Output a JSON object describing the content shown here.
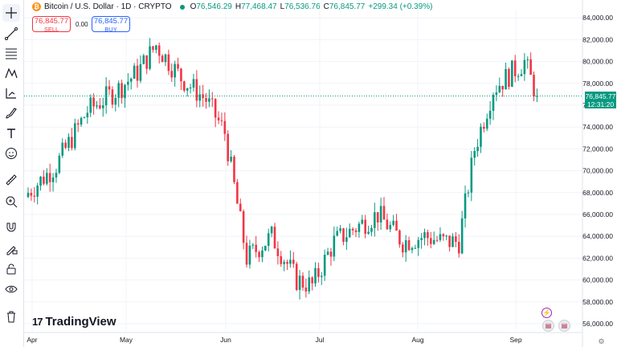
{
  "legend": {
    "symbol_badge": "₿",
    "title": "Bitcoin / U.S. Dollar · 1D · CRYPTO",
    "ohlc": [
      {
        "key": "O",
        "value": "76,546.29"
      },
      {
        "key": "H",
        "value": "77,468.47"
      },
      {
        "key": "L",
        "value": "76,536.76"
      },
      {
        "key": "C",
        "value": "76,845.77"
      }
    ],
    "change": "+299.34 (+0.39%)",
    "up_color": "#089981",
    "down_color": "#f23645"
  },
  "trade": {
    "sell_price": "76,845.77",
    "sell_label": "SELL",
    "spread": "0.00",
    "buy_price": "76,845.77",
    "buy_label": "BUY"
  },
  "price_scale": {
    "current_price": "76,845.77",
    "countdown": "12:31:20"
  },
  "toolbar_icons": [
    "crosshair-icon",
    "trend-line-icon",
    "fib-retracement-icon",
    "pattern-icon",
    "projection-icon",
    "brush-icon",
    "text-icon",
    "emoji-icon",
    "ruler-icon",
    "zoom-in-icon",
    "magnet-icon",
    "lock-drawing-icon",
    "lock-icon",
    "eye-icon",
    "trash-icon"
  ],
  "branding": {
    "mark": "17",
    "name": "TradingView"
  },
  "chart_data": {
    "type": "candlestick",
    "x_tick_labels": [
      "Apr",
      "May",
      "Jun",
      "Jul",
      "Aug",
      "Sep"
    ],
    "y_tick_labels": [
      "84,000.00",
      "82,000.00",
      "80,000.00",
      "78,000.00",
      "76,000.00",
      "74,000.00",
      "72,000.00",
      "70,000.00",
      "68,000.00",
      "66,000.00",
      "64,000.00",
      "62,000.00",
      "60,000.00",
      "58,000.00",
      "56,000.00"
    ],
    "ylim": [
      55000,
      85000
    ],
    "grid": true,
    "last_price_line": 76845.77,
    "approx_close_path": [
      {
        "date": "Apr 1",
        "close": 68000
      },
      {
        "date": "Apr 10",
        "close": 70500
      },
      {
        "date": "Apr 20",
        "close": 75500
      },
      {
        "date": "Apr 30",
        "close": 77500
      },
      {
        "date": "May 6",
        "close": 79000
      },
      {
        "date": "May 12",
        "close": 81500
      },
      {
        "date": "May 20",
        "close": 78500
      },
      {
        "date": "May 28",
        "close": 76500
      },
      {
        "date": "Jun 3",
        "close": 73500
      },
      {
        "date": "Jun 10",
        "close": 62000
      },
      {
        "date": "Jun 18",
        "close": 64000
      },
      {
        "date": "Jun 26",
        "close": 60000
      },
      {
        "date": "Jul 1",
        "close": 59500
      },
      {
        "date": "Jul 8",
        "close": 63500
      },
      {
        "date": "Jul 16",
        "close": 65000
      },
      {
        "date": "Jul 22",
        "close": 66000
      },
      {
        "date": "Jul 30",
        "close": 63500
      },
      {
        "date": "Aug 6",
        "close": 64000
      },
      {
        "date": "Aug 12",
        "close": 63500
      },
      {
        "date": "Aug 17",
        "close": 63500
      },
      {
        "date": "Aug 22",
        "close": 72000
      },
      {
        "date": "Aug 28",
        "close": 77500
      },
      {
        "date": "Sep 3",
        "close": 79000
      },
      {
        "date": "Sep 7",
        "close": 80000
      },
      {
        "date": "Sep 11",
        "close": 76845.77
      }
    ]
  }
}
